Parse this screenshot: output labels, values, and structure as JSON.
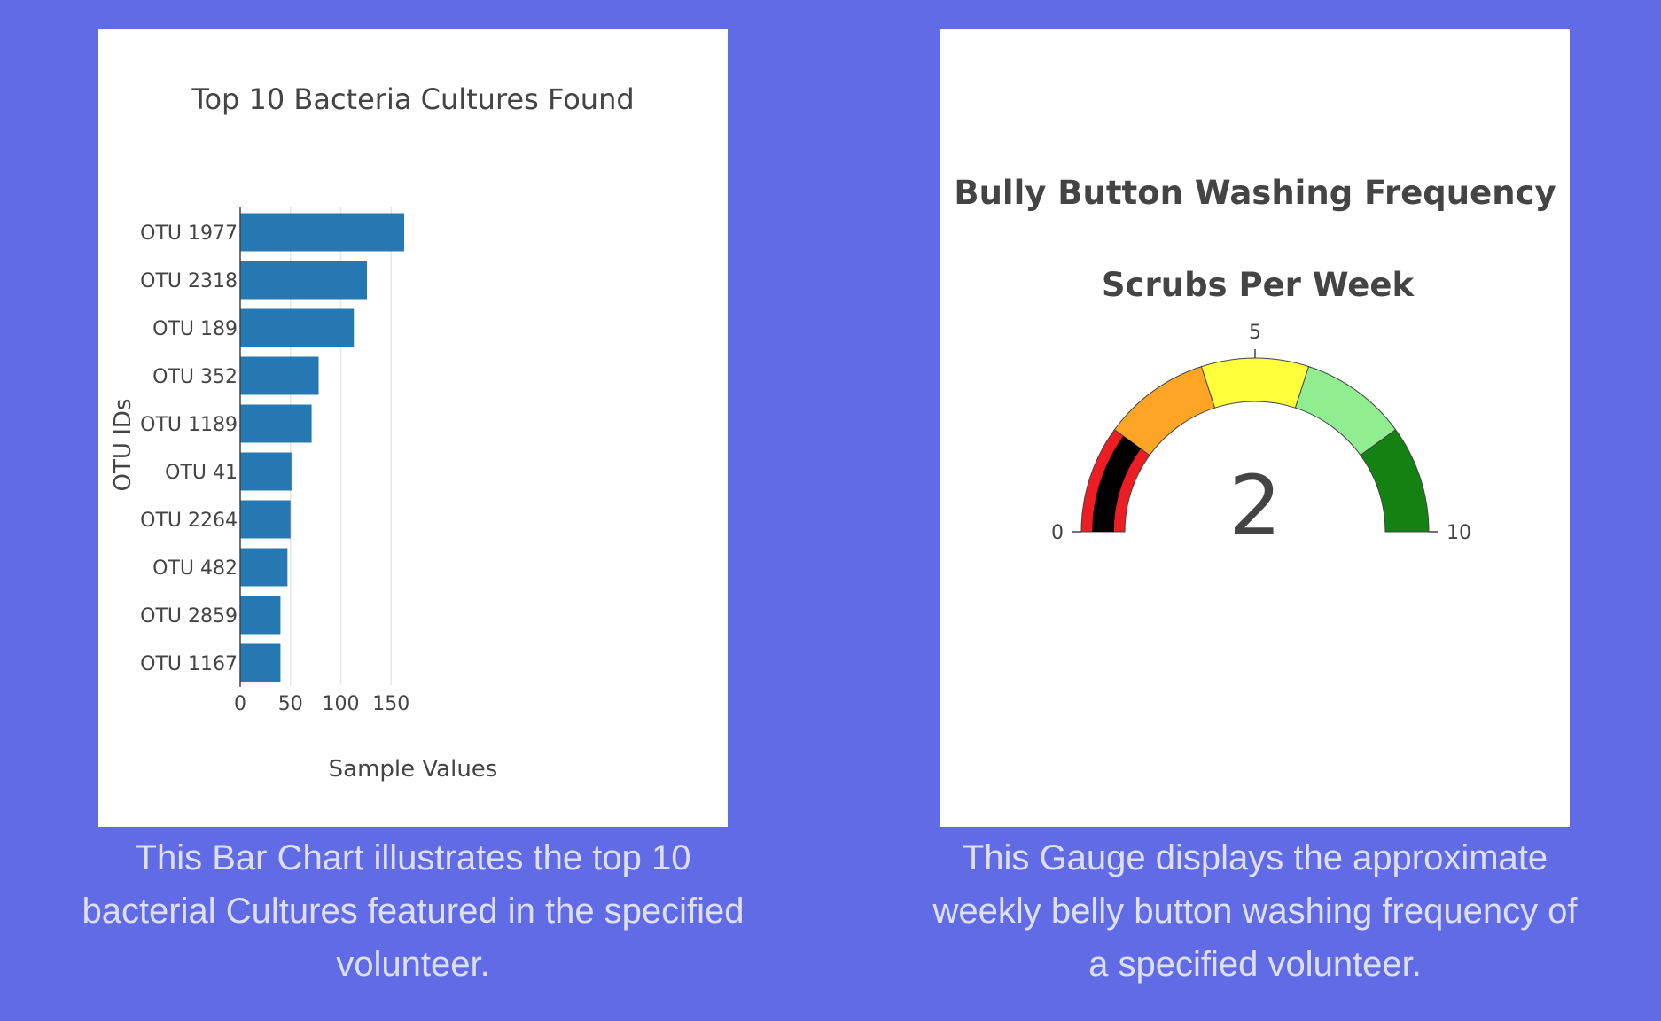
{
  "colors": {
    "background": "#616be6",
    "bar": "#2678b2",
    "gauge_steps": [
      "#ee1d23",
      "#ffa526",
      "#ffff3c",
      "#90ee90",
      "#138212"
    ],
    "needle_bar": "#000000"
  },
  "bar_caption": "This Bar Chart illustrates the top 10 bacterial Cultures featured in the specified volunteer.",
  "gauge_caption": "This Gauge displays the approximate weekly belly button washing frequency of a specified volunteer.",
  "chart_data": [
    {
      "type": "bar",
      "orientation": "horizontal",
      "title": "Top 10 Bacteria Cultures Found",
      "xlabel": "Sample Values",
      "ylabel": "OTU IDs",
      "categories": [
        "OTU 1977",
        "OTU 2318",
        "OTU 189",
        "OTU 352",
        "OTU 1189",
        "OTU 41",
        "OTU 2264",
        "OTU 482",
        "OTU 2859",
        "OTU 1167"
      ],
      "values": [
        163,
        126,
        113,
        78,
        71,
        51,
        50,
        47,
        40,
        40
      ],
      "xlim": [
        0,
        190
      ],
      "xticks": [
        0,
        50,
        100,
        150
      ],
      "grid": true
    },
    {
      "type": "gauge",
      "title": "Bully Button Washing Frequency",
      "subtitle": "Scrubs Per Week",
      "value": 2,
      "range": [
        0,
        10
      ],
      "ticks": [
        0,
        5,
        10
      ],
      "steps": [
        {
          "range": [
            0,
            2
          ],
          "color": "#ee1d23"
        },
        {
          "range": [
            2,
            4
          ],
          "color": "#ffa526"
        },
        {
          "range": [
            4,
            6
          ],
          "color": "#ffff3c"
        },
        {
          "range": [
            6,
            8
          ],
          "color": "#90ee90"
        },
        {
          "range": [
            8,
            10
          ],
          "color": "#138212"
        }
      ]
    }
  ]
}
